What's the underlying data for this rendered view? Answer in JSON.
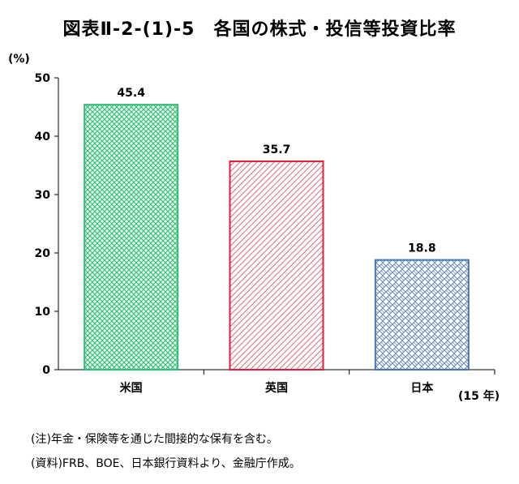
{
  "chart_data": {
    "type": "bar",
    "title": "図表Ⅱ-2-(1)-5　各国の株式・投信等投資比率",
    "ylabel": "(%)",
    "xlabel": "",
    "year_note": "(15 年)",
    "categories": [
      "米国",
      "英国",
      "日本"
    ],
    "values": [
      45.4,
      35.7,
      18.8
    ],
    "value_labels": [
      "45.4",
      "35.7",
      "18.8"
    ],
    "ylim": [
      0,
      50
    ],
    "yticks": [
      0,
      10,
      20,
      30,
      40,
      50
    ],
    "grid": false,
    "legend": "none",
    "colors": [
      "#33bb77",
      "#e0203a",
      "#4a76a8"
    ]
  },
  "notes": [
    "(注)年金・保険等を通じた間接的な保有を含む。",
    "(資料)FRB、BOE、日本銀行資料より、金融庁作成。"
  ]
}
